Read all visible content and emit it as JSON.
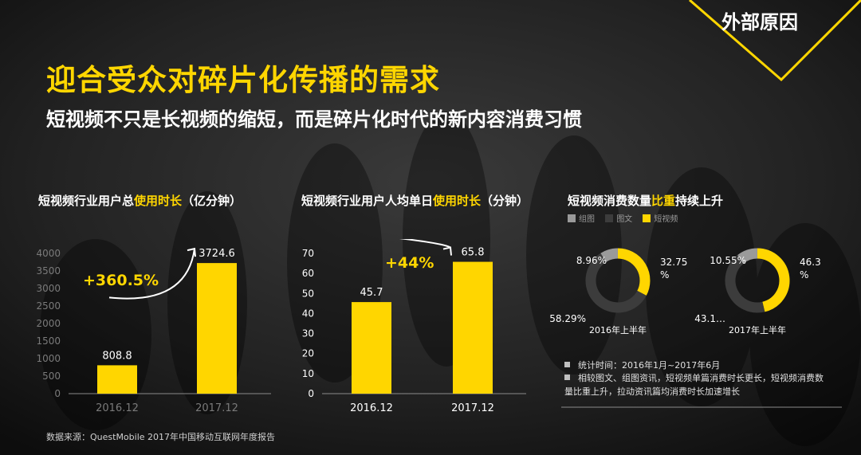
{
  "header": {
    "tag": "外部原因",
    "title": "迎合受众对碎片化传播的需求",
    "subtitle": "短视频不只是长视频的缩短，而是碎片化时代的新内容消费习惯"
  },
  "colors": {
    "accent": "#ffd600",
    "gray": "#9a9a9a",
    "dark": "#3c3c3c",
    "text": "#ffffff"
  },
  "chart_data": [
    {
      "type": "bar",
      "title_parts": [
        "短视频行业用户总",
        "使用时长",
        "（亿分钟）"
      ],
      "categories": [
        "2016.12",
        "2017.12"
      ],
      "values": [
        808.8,
        3724.6
      ],
      "value_labels": [
        "808.8",
        "3724.6"
      ],
      "yticks": [
        "0",
        "500",
        "1000",
        "1500",
        "2000",
        "2500",
        "3000",
        "3500",
        "4000"
      ],
      "ylim": [
        0,
        4000
      ],
      "growth_label": "+360.5%"
    },
    {
      "type": "bar",
      "title_parts": [
        "短视频行业用户人均单日",
        "使用时长",
        "（分钟）"
      ],
      "categories": [
        "2016.12",
        "2017.12"
      ],
      "values": [
        45.7,
        65.8
      ],
      "value_labels": [
        "45.7",
        "65.8"
      ],
      "yticks": [
        "0",
        "10",
        "20",
        "30",
        "40",
        "50",
        "60",
        "70"
      ],
      "ylim": [
        0,
        70
      ],
      "growth_label": "+44%"
    },
    {
      "type": "pie",
      "title_parts": [
        "短视频消费数量",
        "比重",
        "持续上升"
      ],
      "legend": [
        {
          "label": "组图",
          "color": "#9a9a9a"
        },
        {
          "label": "图文",
          "color": "#3c3c3c"
        },
        {
          "label": "短视频",
          "color": "#ffd600"
        }
      ],
      "donuts": [
        {
          "label": "2016年上半年",
          "values": [
            8.96,
            58.29,
            32.75
          ],
          "value_labels": {
            "gray": "8.96%",
            "dark": "58.29%",
            "yellow_line1": "32.75",
            "yellow_line2": "%"
          }
        },
        {
          "label": "2017年上半年",
          "values": [
            10.55,
            43.14,
            46.31
          ],
          "value_labels": {
            "gray": "10.55%",
            "dark": "43.1…",
            "yellow_line1": "46.31",
            "yellow_line2": "%"
          }
        }
      ]
    }
  ],
  "notes": [
    "统计时间：2016年1月~2017年6月",
    "相较图文、组图资讯，短视频单篇消费时长更长，短视频消费数量比重上升，拉动资讯篇均消费时长加速增长"
  ],
  "source": "数据来源：QuestMobile 2017年中国移动互联网年度报告"
}
